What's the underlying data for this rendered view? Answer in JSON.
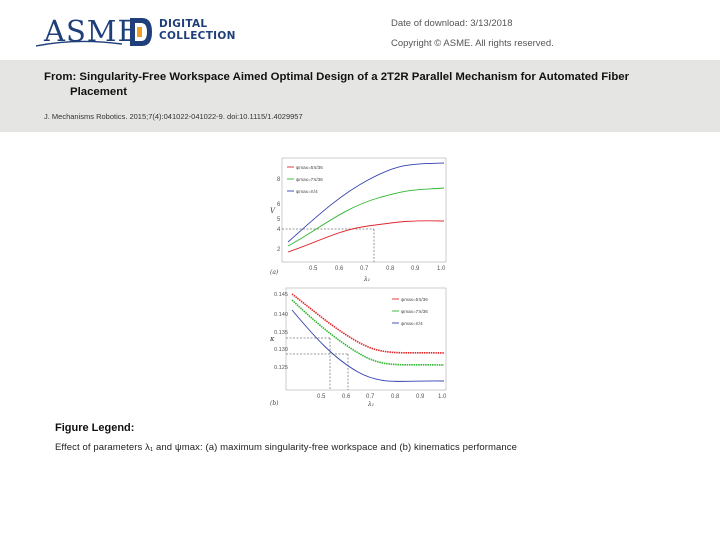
{
  "header": {
    "logo_text": "ASME",
    "logo_sub_line1": "DIGITAL",
    "logo_sub_line2": "COLLECTION",
    "download_date": "Date of download:  3/13/2018",
    "copyright": "Copyright © ASME. All rights reserved."
  },
  "article": {
    "title_line1": "From: Singularity-Free Workspace Aimed Optimal Design of a 2T2R Parallel Mechanism for Automated Fiber",
    "title_line2": "Placement",
    "citation": "J. Mechanisms Robotics. 2015;7(4):041022-041022-9. doi:10.1115/1.4029957"
  },
  "figure": {
    "panel_a": {
      "label": "(a)",
      "ylabel": "V",
      "xlabel": "λ₁",
      "x_ticks": [
        "0.5",
        "0.6",
        "0.7",
        "0.8",
        "0.9",
        "1.0"
      ],
      "y_ticks": [
        "2",
        "4",
        "5",
        "6",
        "8"
      ],
      "legend": [
        "ψmax=5π/36",
        "ψmax=7π/36",
        "ψmax=π/4"
      ]
    },
    "panel_b": {
      "label": "(b)",
      "ylabel": "κ",
      "xlabel": "λ₁",
      "x_ticks": [
        "0.5",
        "0.6",
        "0.7",
        "0.8",
        "0.9",
        "1.0"
      ],
      "y_ticks": [
        "0.145",
        "0.140",
        "0.135",
        "0.130",
        "0.125"
      ],
      "legend": [
        "ψmax=5π/36",
        "ψmax=7π/36",
        "ψmax=π/4"
      ]
    },
    "colors": {
      "red": "#e0262b",
      "green": "#2fb62f",
      "blue": "#3340b0"
    }
  },
  "legend_section": {
    "heading": "Figure Legend:",
    "text": "Effect of parameters λ₁ and ψmax: (a) maximum singularity-free workspace and (b) kinematics performance"
  }
}
